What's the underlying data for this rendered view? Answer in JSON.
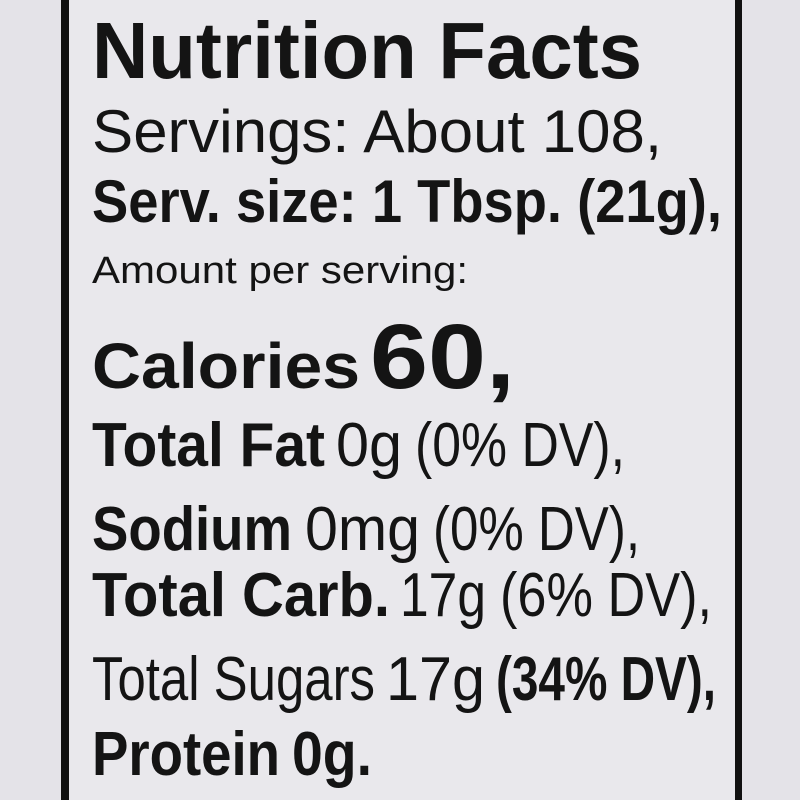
{
  "title": "Nutrition Facts",
  "servings": "Servings: About 108,",
  "serving_size": "Serv. size: 1 Tbsp. (21g),",
  "amount_per_serving": "Amount per serving:",
  "calories": {
    "label": "Calories",
    "value": "60,"
  },
  "nutrients": [
    {
      "name": "Total Fat",
      "amount": "0g",
      "dv": "(0% DV),"
    },
    {
      "name": "Sodium",
      "amount": "0mg",
      "dv": "(0% DV),"
    },
    {
      "name": "Total Carb.",
      "amount": "17g",
      "dv": "(6% DV),"
    },
    {
      "name": "Total Sugars",
      "amount": "17g",
      "dv": "(34% DV),"
    },
    {
      "name": "Protein",
      "amount": "0g."
    }
  ]
}
